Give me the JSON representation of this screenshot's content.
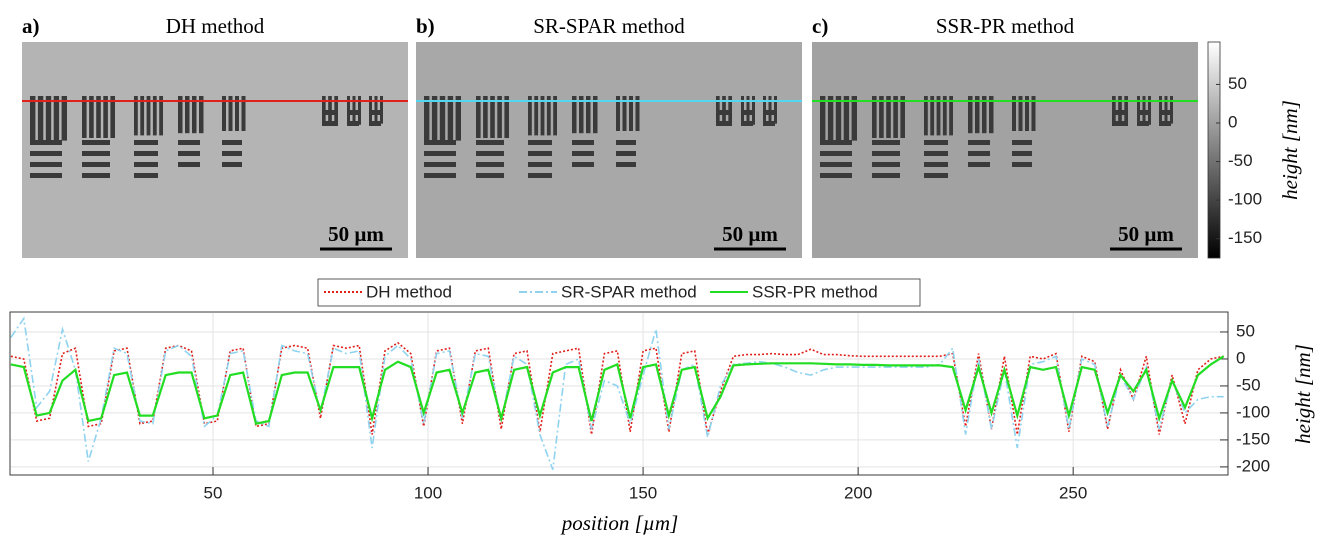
{
  "panels": [
    {
      "label": "a)",
      "title": "DH method",
      "scale_bar": "50 µm"
    },
    {
      "label": "b)",
      "title": "SR-SPAR method",
      "scale_bar": "50 µm"
    },
    {
      "label": "c)",
      "title": "SSR-PR method",
      "scale_bar": "50 µm"
    }
  ],
  "colorbar": {
    "label": "height [nm]",
    "lim": [
      -175,
      105
    ],
    "ticks": [
      50,
      0,
      -50,
      -100,
      -150
    ]
  },
  "chart_data": {
    "type": "line",
    "xlabel": "position [µm]",
    "ylabel": "height [nm]",
    "x": [
      3,
      6,
      9,
      12,
      15,
      18,
      21,
      24,
      27,
      30,
      33,
      36,
      39,
      42,
      45,
      48,
      51,
      54,
      57,
      60,
      63,
      66,
      69,
      72,
      75,
      78,
      81,
      84,
      87,
      90,
      93,
      96,
      99,
      102,
      105,
      108,
      111,
      114,
      117,
      120,
      123,
      126,
      129,
      132,
      135,
      138,
      141,
      144,
      147,
      150,
      153,
      156,
      159,
      162,
      165,
      168,
      171,
      174,
      177,
      180,
      183,
      186,
      189,
      192,
      195,
      198,
      201,
      204,
      207,
      210,
      213,
      216,
      219,
      222,
      225,
      228,
      231,
      234,
      237,
      240,
      243,
      246,
      249,
      252,
      255,
      258,
      261,
      264,
      267,
      270,
      273,
      276,
      279,
      282,
      285
    ],
    "xlim": [
      2.8,
      286
    ],
    "xticks": [
      50,
      100,
      150,
      200,
      250
    ],
    "ylim": [
      -215,
      87
    ],
    "yticks": [
      50,
      0,
      -50,
      -100,
      -150,
      -200
    ],
    "grid": true,
    "legend": "top-center",
    "series": [
      {
        "name": "DH method",
        "color": "#e0201b",
        "dash": "dotted",
        "values": [
          5,
          0,
          -115,
          -110,
          10,
          20,
          -125,
          -120,
          15,
          20,
          -120,
          -115,
          20,
          25,
          15,
          -120,
          -115,
          15,
          20,
          -125,
          -120,
          20,
          25,
          20,
          -110,
          25,
          20,
          25,
          -140,
          15,
          30,
          10,
          -125,
          15,
          20,
          -120,
          15,
          20,
          -130,
          10,
          15,
          -135,
          10,
          15,
          20,
          -140,
          10,
          15,
          -135,
          15,
          20,
          -135,
          10,
          15,
          -140,
          -60,
          5,
          8,
          8,
          10,
          8,
          8,
          18,
          8,
          8,
          6,
          5,
          5,
          5,
          5,
          5,
          5,
          5,
          10,
          -125,
          10,
          -130,
          5,
          -140,
          5,
          0,
          10,
          -135,
          5,
          -5,
          -130,
          -20,
          -75,
          5,
          -140,
          -30,
          -120,
          -20,
          0,
          5
        ]
      },
      {
        "name": "SR-SPAR method",
        "color": "#8fd3f0",
        "dash": "dashdot",
        "values": [
          40,
          75,
          -90,
          -60,
          55,
          -20,
          -190,
          -110,
          20,
          10,
          -115,
          -120,
          15,
          25,
          5,
          -125,
          -105,
          10,
          15,
          -115,
          -125,
          25,
          15,
          10,
          -100,
          20,
          10,
          15,
          -165,
          5,
          25,
          0,
          -120,
          10,
          15,
          -110,
          10,
          5,
          -115,
          5,
          -10,
          -140,
          -205,
          -10,
          0,
          -130,
          -40,
          -50,
          -120,
          -30,
          55,
          -130,
          -20,
          -10,
          -145,
          -50,
          -10,
          -8,
          -5,
          -8,
          -15,
          -25,
          -30,
          -20,
          -15,
          -15,
          -15,
          -15,
          -15,
          -15,
          -15,
          -15,
          -10,
          20,
          -140,
          0,
          -130,
          -20,
          -165,
          -10,
          -5,
          5,
          -130,
          0,
          -10,
          -125,
          -30,
          -75,
          -15,
          -130,
          -40,
          -100,
          -75,
          -70,
          -70
        ]
      },
      {
        "name": "SSR-PR method",
        "color": "#22dd22",
        "dash": "solid",
        "values": [
          -10,
          -15,
          -105,
          -100,
          -40,
          -20,
          -115,
          -110,
          -30,
          -25,
          -105,
          -105,
          -30,
          -25,
          -25,
          -110,
          -105,
          -30,
          -25,
          -120,
          -115,
          -30,
          -25,
          -25,
          -95,
          -15,
          -15,
          -15,
          -110,
          -20,
          -5,
          -15,
          -100,
          -25,
          -20,
          -100,
          -25,
          -20,
          -110,
          -20,
          -15,
          -105,
          -25,
          -15,
          -15,
          -115,
          -20,
          -10,
          -110,
          -15,
          -10,
          -105,
          -20,
          -15,
          -110,
          -70,
          -12,
          -10,
          -9,
          -8,
          -8,
          -8,
          -8,
          -9,
          -10,
          -10,
          -11,
          -11,
          -12,
          -12,
          -12,
          -12,
          -12,
          -15,
          -95,
          -15,
          -100,
          -20,
          -105,
          -15,
          -20,
          -15,
          -105,
          -15,
          -20,
          -100,
          -30,
          -60,
          -20,
          -110,
          -40,
          -90,
          -30,
          -10,
          5
        ]
      }
    ]
  }
}
